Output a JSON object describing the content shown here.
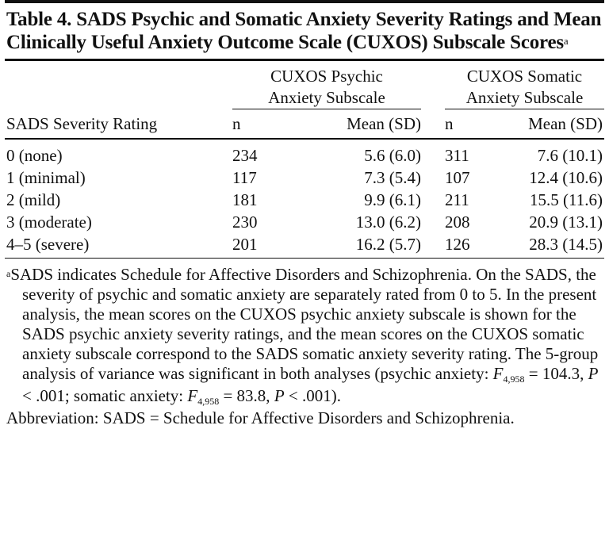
{
  "table": {
    "title": "Table 4. SADS Psychic and Somatic Anxiety Severity Ratings and Mean Clinically Useful Anxiety Outcome Scale (CUXOS) Subscale Scores",
    "title_superscript": "a",
    "group_headers": {
      "psychic_line1": "CUXOS Psychic",
      "psychic_line2": "Anxiety Subscale",
      "somatic_line1": "CUXOS Somatic",
      "somatic_line2": "Anxiety Subscale"
    },
    "column_headers": {
      "rating": "SADS Severity Rating",
      "psychic_n": "n",
      "psychic_mean": "Mean (SD)",
      "somatic_n": "n",
      "somatic_mean": "Mean (SD)"
    },
    "rows": [
      {
        "rating": "0 (none)",
        "psychic_n": "234",
        "psychic_mean": "5.6 (6.0)",
        "somatic_n": "311",
        "somatic_mean": "7.6 (10.1)"
      },
      {
        "rating": "1 (minimal)",
        "psychic_n": "117",
        "psychic_mean": "7.3 (5.4)",
        "somatic_n": "107",
        "somatic_mean": "12.4 (10.6)"
      },
      {
        "rating": "2 (mild)",
        "psychic_n": "181",
        "psychic_mean": "9.9 (6.1)",
        "somatic_n": "211",
        "somatic_mean": "15.5 (11.6)"
      },
      {
        "rating": "3 (moderate)",
        "psychic_n": "230",
        "psychic_mean": "13.0 (6.2)",
        "somatic_n": "208",
        "somatic_mean": "20.9 (13.1)"
      },
      {
        "rating": "4–5 (severe)",
        "psychic_n": "201",
        "psychic_mean": "16.2 (5.7)",
        "somatic_n": "126",
        "somatic_mean": "28.3 (14.5)"
      }
    ]
  },
  "footnote": {
    "marker": "a",
    "text_main": "SADS indicates Schedule for Affective Disorders and Schizophrenia. On the SADS, the severity of psychic and somatic anxiety are separately rated from 0 to 5. In the present analysis, the mean scores on the CUXOS psychic anxiety subscale is shown for the SADS psychic anxiety severity ratings, and the mean scores on the CUXOS somatic anxiety subscale correspond to the SADS somatic anxiety severity rating. The 5-group analysis of variance was significant in both analyses (psychic anxiety: ",
    "stat_F": "F",
    "stat_df": "4,958",
    "stat1_value": " = 104.3, ",
    "stat_P": "P",
    "stat1_p": " < .001; somatic anxiety: ",
    "stat2_value": " = 83.8, ",
    "stat2_p": " < .001).",
    "abbreviation": "Abbreviation: SADS = Schedule for Affective Disorders and Schizophrenia."
  }
}
